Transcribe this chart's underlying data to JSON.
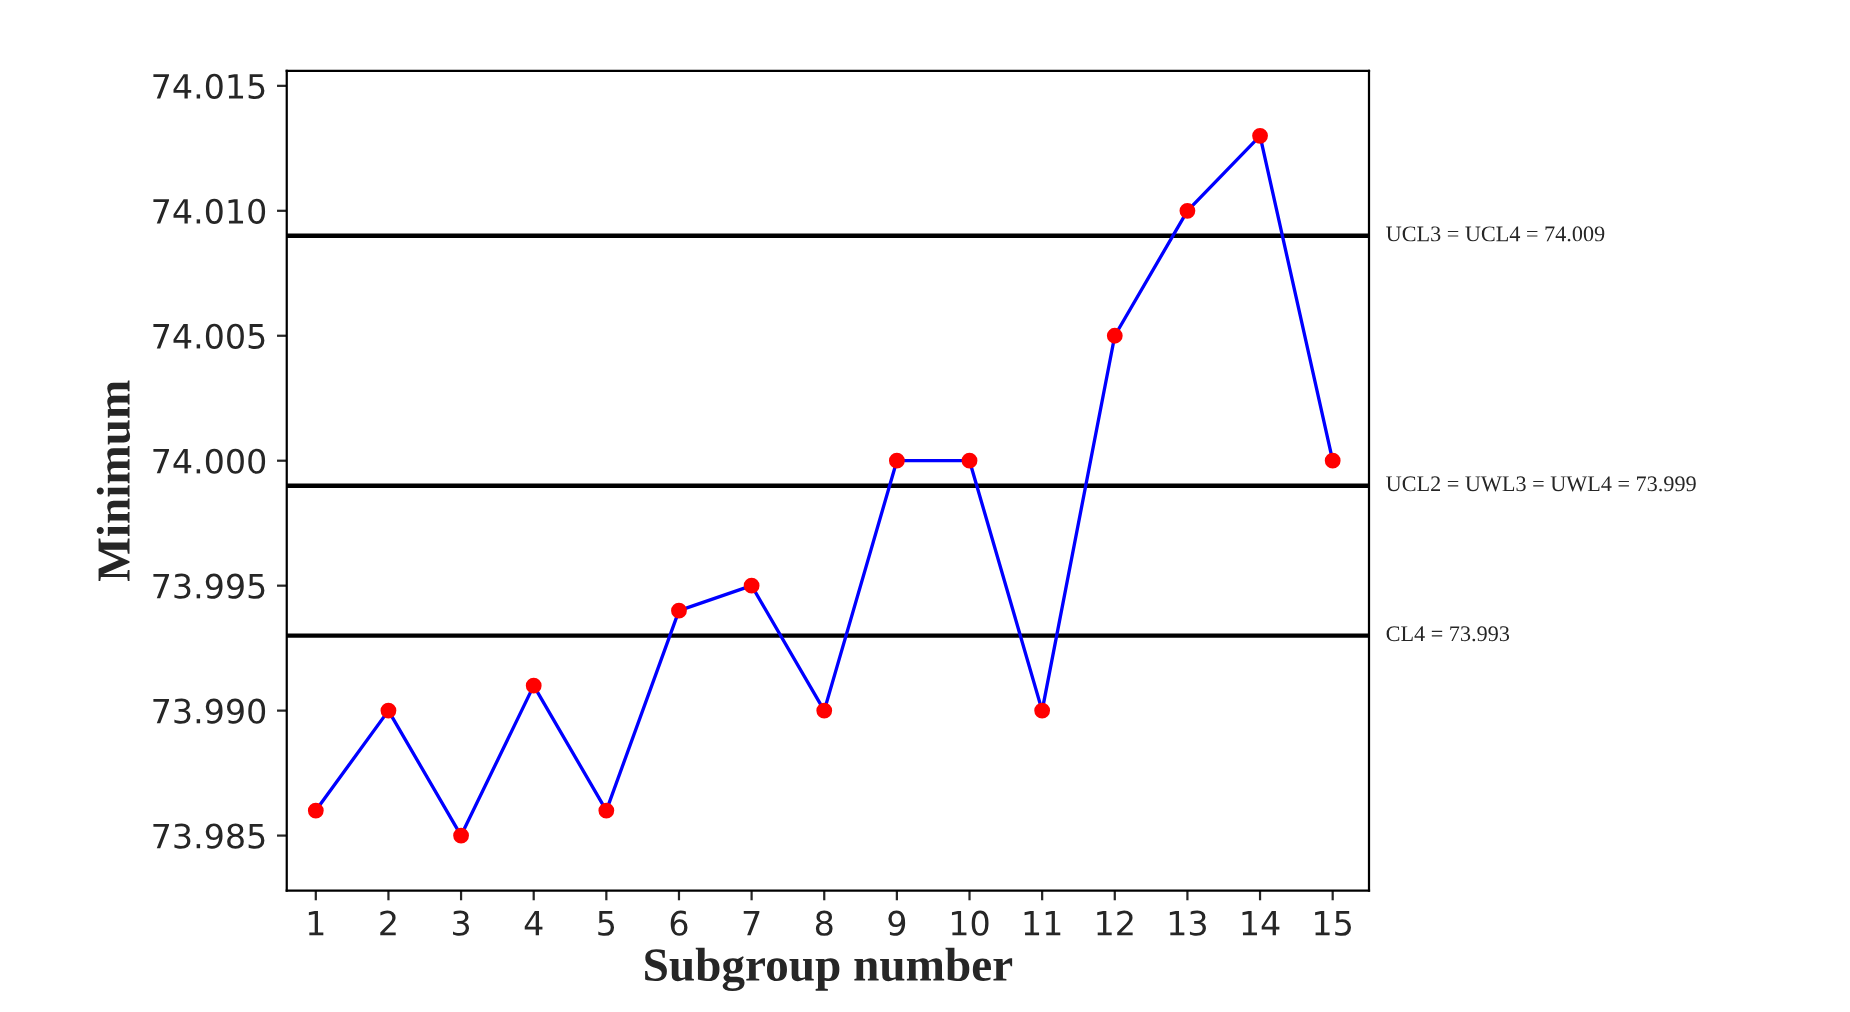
{
  "chart_data": {
    "type": "line",
    "xlabel": "Subgroup number",
    "ylabel": "Minimum",
    "x": [
      1,
      2,
      3,
      4,
      5,
      6,
      7,
      8,
      9,
      10,
      11,
      12,
      13,
      14,
      15
    ],
    "series": [
      {
        "color": "#0000ff",
        "colors": [
          "#ff0000",
          "#ff0000",
          "#ff0000",
          "#ff0000",
          "#ff0000",
          "#ff0000",
          "#ff0000",
          "#ff0000",
          "#ff0000",
          "#ff0000",
          "#ff0000",
          "#ff0000",
          "#ff0000",
          "#ff0000",
          "#ff0000"
        ],
        "values": [
          73.986,
          73.99,
          73.985,
          73.991,
          73.986,
          73.994,
          73.995,
          73.99,
          74.0,
          74.0,
          73.99,
          74.005,
          74.01,
          74.013,
          74.0
        ]
      }
    ],
    "xlim": [
      0.6,
      15.5
    ],
    "xticks": [
      1,
      2,
      3,
      4,
      5,
      6,
      7,
      8,
      9,
      10,
      11,
      12,
      13,
      14,
      15
    ],
    "ylim": [
      73.9828,
      74.0156
    ],
    "yticks": [
      {
        "value": 73.985,
        "label": "73.985"
      },
      {
        "value": 73.99,
        "label": "73.990"
      },
      {
        "value": 73.995,
        "label": "73.995"
      },
      {
        "value": 74.0,
        "label": "74.000"
      },
      {
        "value": 74.005,
        "label": "74.005"
      },
      {
        "value": 74.01,
        "label": "74.010"
      },
      {
        "value": 74.015,
        "label": "74.015"
      }
    ],
    "ref_lines": [
      {
        "axis": "y",
        "value": 74.009,
        "label": "UCL3 = UCL4 = 74.009",
        "color": "#000000"
      },
      {
        "axis": "y",
        "value": 73.999,
        "label": "UCL2 = UWL3 = UWL4 = 73.999",
        "color": "#000000"
      },
      {
        "axis": "y",
        "value": 73.993,
        "label": "CL4 = 73.993",
        "color": "#000000"
      }
    ],
    "marker": "circle",
    "line_style": "solid",
    "grid": false,
    "legend": false
  }
}
